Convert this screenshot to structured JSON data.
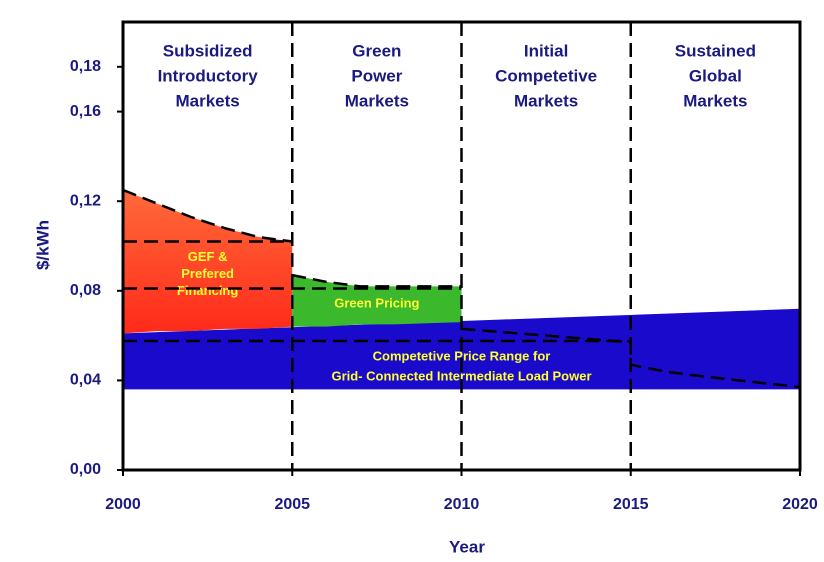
{
  "chart_data": {
    "type": "area",
    "xlabel": "Year",
    "ylabel": "$/kWh",
    "xlim": [
      2000,
      2020
    ],
    "xticks": [
      2000,
      2005,
      2010,
      2015,
      2020
    ],
    "ylim": [
      0,
      0.2
    ],
    "yticks": [
      {
        "value": 0,
        "label": "0,00"
      },
      {
        "value": 0.04,
        "label": "0,04"
      },
      {
        "value": 0.08,
        "label": "0,08"
      },
      {
        "value": 0.12,
        "label": "0,12"
      },
      {
        "value": 0.16,
        "label": "0,16"
      },
      {
        "value": 0.18,
        "label": "0,18"
      }
    ],
    "dividers": [
      2005,
      2010,
      2015
    ],
    "regions": [
      [
        "Subsidized",
        "Introductory",
        "Markets"
      ],
      [
        "Green",
        "Power",
        "Markets"
      ],
      [
        "Initial",
        "Competetive",
        "Markets"
      ],
      [
        "Sustained",
        "Global",
        "Markets"
      ]
    ],
    "series": [
      {
        "name": [
          "Competetive Price Range for",
          "Grid- Connected Intermediate Load Power"
        ],
        "color": "#1a0acc",
        "x": [
          2000,
          2020
        ],
        "lower": [
          0.036,
          0.036
        ],
        "upper": [
          0.061,
          0.072
        ]
      },
      {
        "name": [
          "GEF &",
          "Prefered",
          "Financing"
        ],
        "color": "#ff2a1a",
        "gradient": "#ff6a3a",
        "edge": "dashed",
        "x": [
          2000,
          2001,
          2002,
          2003,
          2004,
          2005
        ],
        "lower": [
          0.061,
          0.062,
          0.062,
          0.063,
          0.063,
          0.064
        ],
        "upper": [
          0.125,
          0.119,
          0.113,
          0.108,
          0.104,
          0.102
        ]
      },
      {
        "name": [
          "Green Pricing"
        ],
        "color": "#3cb82c",
        "edge": "dashed",
        "x": [
          2005,
          2006,
          2007,
          2008,
          2010
        ],
        "lower": [
          0.064,
          0.064,
          0.065,
          0.065,
          0.066
        ],
        "upper": [
          0.087,
          0.084,
          0.082,
          0.082,
          0.082
        ]
      }
    ],
    "lines": [
      {
        "x": [
          2000,
          2005
        ],
        "values": [
          0.102,
          0.102
        ]
      },
      {
        "x": [
          2000,
          2010
        ],
        "values": [
          0.081,
          0.081
        ]
      },
      {
        "x": [
          2000,
          2015
        ],
        "values": [
          0.0576,
          0.0576
        ]
      },
      {
        "x": [
          2010,
          2015,
          2015,
          2016,
          2017,
          2020
        ],
        "values": [
          0.063,
          0.057,
          0.047,
          0.044,
          0.042,
          0.037
        ]
      }
    ]
  }
}
